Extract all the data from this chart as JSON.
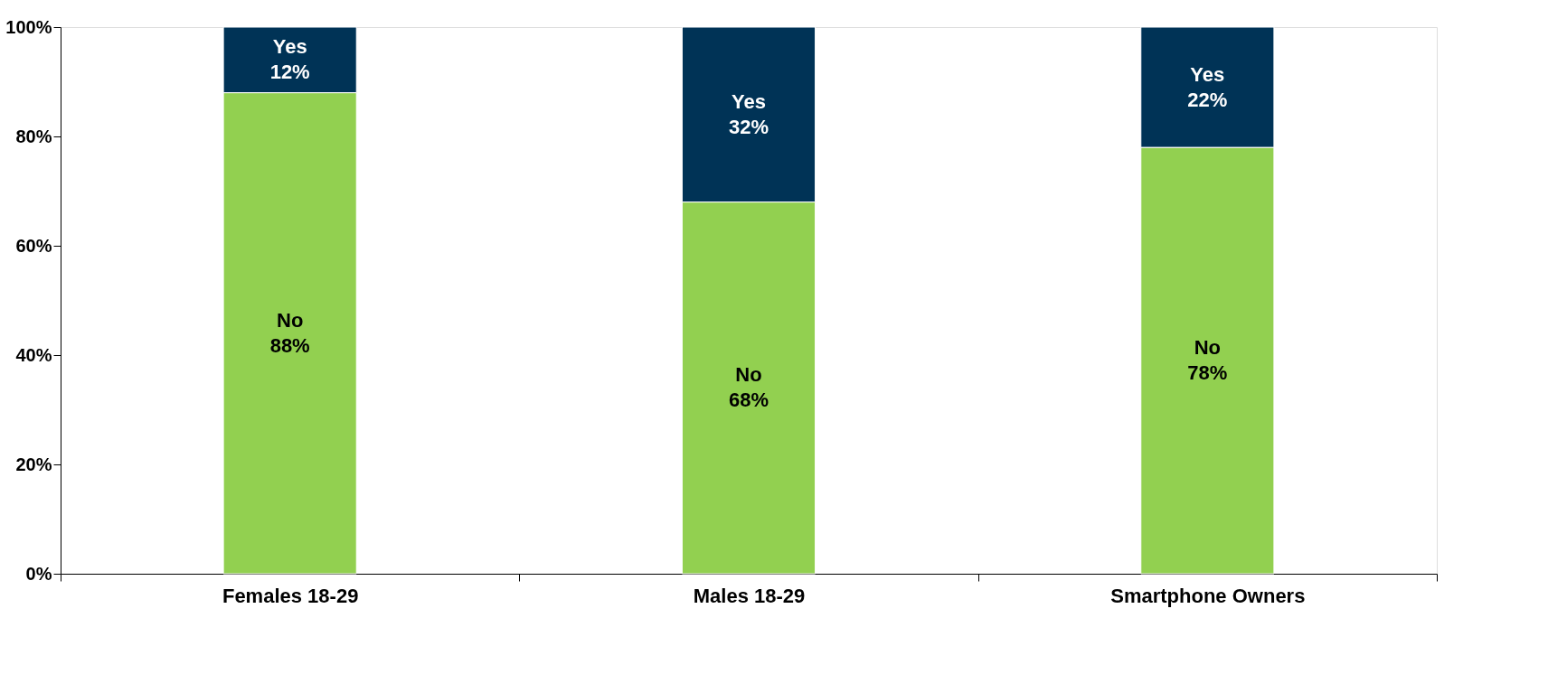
{
  "chart_data": {
    "type": "bar",
    "stacked": true,
    "categories": [
      "Females 18-29",
      "Males 18-29",
      "Smartphone Owners"
    ],
    "series": [
      {
        "name": "No",
        "color": "#92d050",
        "values": [
          88,
          68,
          78
        ],
        "value_labels": [
          "88%",
          "68%",
          "78%"
        ]
      },
      {
        "name": "Yes",
        "color": "#003356",
        "values": [
          12,
          32,
          22
        ],
        "value_labels": [
          "12%",
          "32%",
          "22%"
        ]
      }
    ],
    "ylim": [
      0,
      100
    ],
    "yticks": [
      {
        "value": 0,
        "label": "0%"
      },
      {
        "value": 20,
        "label": "20%"
      },
      {
        "value": 40,
        "label": "40%"
      },
      {
        "value": 60,
        "label": "60%"
      },
      {
        "value": 80,
        "label": "80%"
      },
      {
        "value": 100,
        "label": "100%"
      }
    ],
    "grid": false
  }
}
